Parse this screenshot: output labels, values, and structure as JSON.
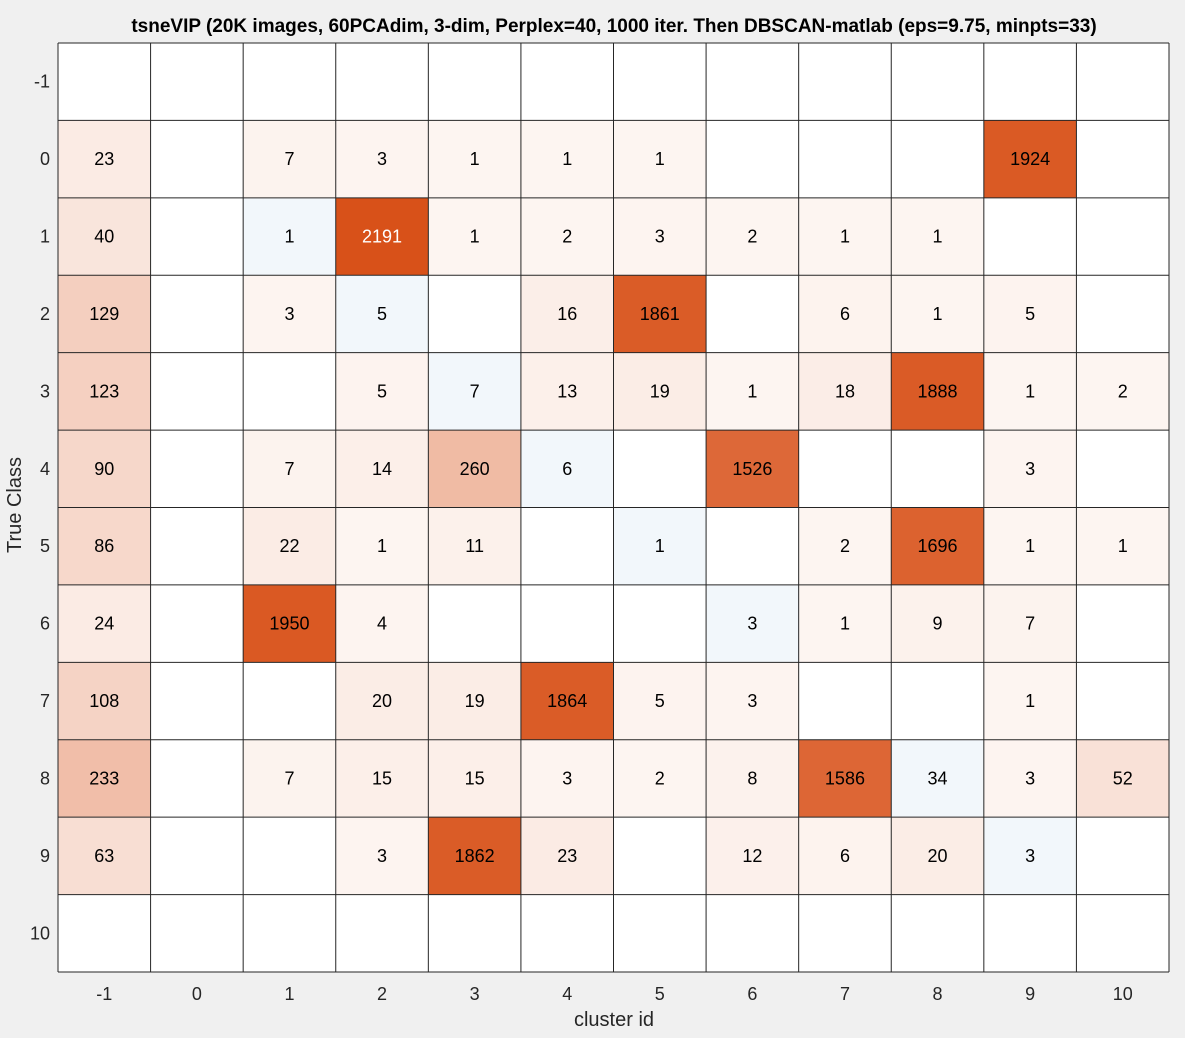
{
  "chart_data": {
    "type": "heatmap",
    "title": "tsneVIP (20K images, 60PCAdim, 3-dim, Perplex=40, 1000 iter. Then DBSCAN-matlab (eps=9.75, minpts=33)",
    "xlabel": "cluster id",
    "ylabel": "True Class",
    "x_categories": [
      "-1",
      "0",
      "1",
      "2",
      "3",
      "4",
      "5",
      "6",
      "7",
      "8",
      "9",
      "10"
    ],
    "y_categories": [
      "-1",
      "0",
      "1",
      "2",
      "3",
      "4",
      "5",
      "6",
      "7",
      "8",
      "9",
      "10"
    ],
    "values": [
      [
        null,
        null,
        null,
        null,
        null,
        null,
        null,
        null,
        null,
        null,
        null,
        null
      ],
      [
        23,
        null,
        7,
        3,
        1,
        1,
        1,
        null,
        null,
        null,
        1924,
        null
      ],
      [
        40,
        null,
        1,
        2191,
        1,
        2,
        3,
        2,
        1,
        1,
        null,
        null
      ],
      [
        129,
        null,
        3,
        5,
        null,
        16,
        1861,
        null,
        6,
        1,
        5,
        null
      ],
      [
        123,
        null,
        null,
        5,
        7,
        13,
        19,
        1,
        18,
        1888,
        1,
        2
      ],
      [
        90,
        null,
        7,
        14,
        260,
        6,
        null,
        1526,
        null,
        null,
        3,
        null
      ],
      [
        86,
        null,
        22,
        1,
        11,
        null,
        1,
        null,
        2,
        1696,
        1,
        1
      ],
      [
        24,
        null,
        1950,
        4,
        null,
        null,
        null,
        3,
        1,
        9,
        7,
        null
      ],
      [
        108,
        null,
        null,
        20,
        19,
        1864,
        5,
        3,
        null,
        null,
        1,
        null
      ],
      [
        233,
        null,
        7,
        15,
        15,
        3,
        2,
        8,
        1586,
        34,
        3,
        52
      ],
      [
        63,
        null,
        null,
        3,
        1862,
        23,
        null,
        12,
        6,
        20,
        3,
        null
      ],
      [
        null,
        null,
        null,
        null,
        null,
        null,
        null,
        null,
        null,
        null,
        null,
        null
      ]
    ],
    "colors": {
      "background": "#f0f0f0",
      "cell_empty": "#ffffff",
      "grid": "#262626",
      "highlight_diagonal": "#f2f7fb",
      "offdiag_low": "#fdf5f1",
      "offdiag_high": "#d85119",
      "label_dark": "#000000",
      "label_light": "#ffffff"
    }
  }
}
